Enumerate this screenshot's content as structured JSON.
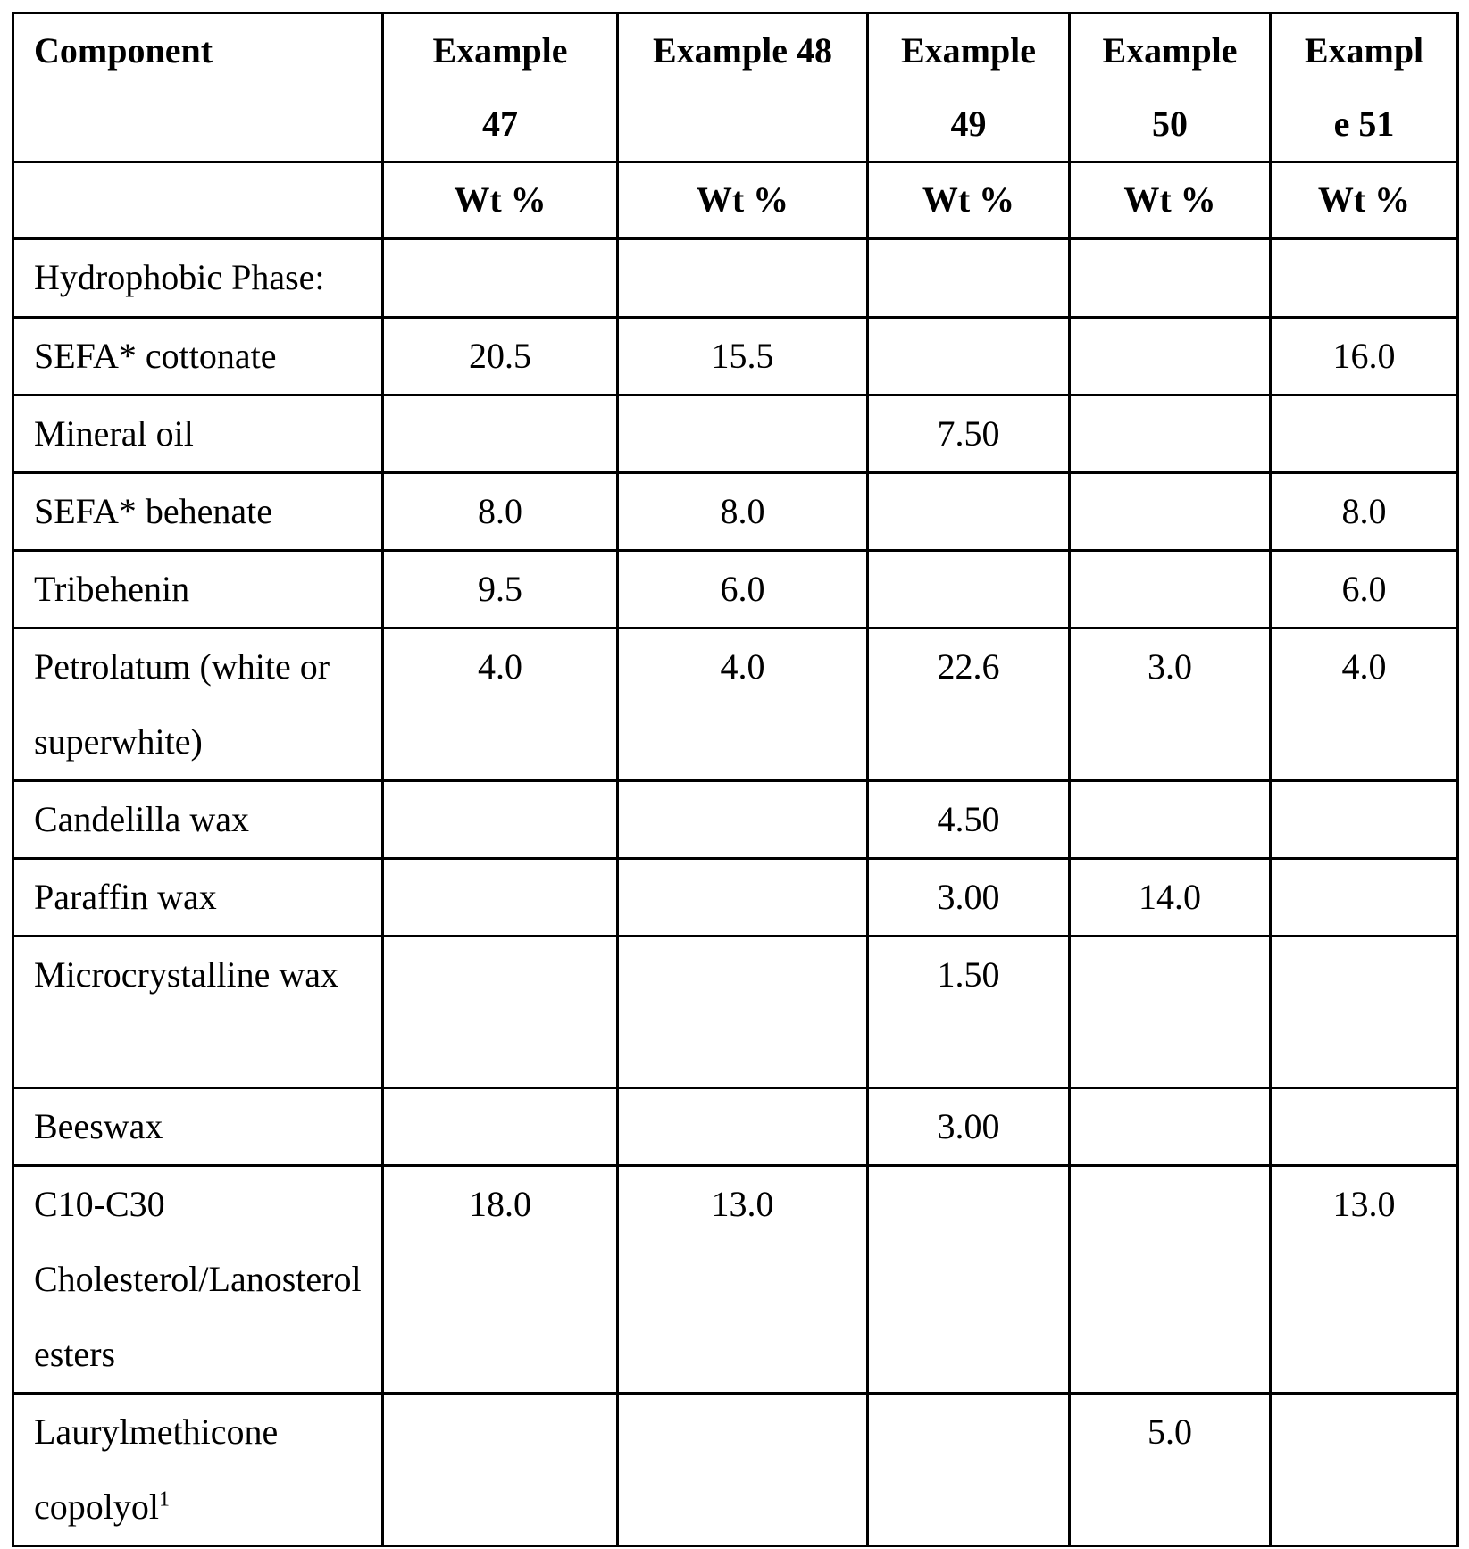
{
  "table": {
    "header": [
      "Component",
      "Example 47",
      "Example 48",
      "Example 49",
      "Example 50",
      "Exampl e 51"
    ],
    "units": [
      "",
      "Wt %",
      "Wt %",
      "Wt %",
      "Wt %",
      "Wt %"
    ],
    "rows": [
      {
        "component": "Hydrophobic Phase:",
        "values": [
          "",
          "",
          "",
          "",
          ""
        ]
      },
      {
        "component": "SEFA* cottonate",
        "values": [
          "20.5",
          "15.5",
          "",
          "",
          "16.0"
        ]
      },
      {
        "component": "Mineral oil",
        "values": [
          "",
          "",
          "7.50",
          "",
          ""
        ]
      },
      {
        "component": "SEFA* behenate",
        "values": [
          "8.0",
          "8.0",
          "",
          "",
          "8.0"
        ]
      },
      {
        "component": "Tribehenin",
        "values": [
          "9.5",
          "6.0",
          "",
          "",
          "6.0"
        ]
      },
      {
        "component": "Petrolatum (white or superwhite)",
        "values": [
          "4.0",
          "4.0",
          "22.6",
          "3.0",
          "4.0"
        ]
      },
      {
        "component": "Candelilla wax",
        "values": [
          "",
          "",
          "4.50",
          "",
          ""
        ]
      },
      {
        "component": "Paraffin wax",
        "values": [
          "",
          "",
          "3.00",
          "14.0",
          ""
        ]
      },
      {
        "component": "Microcrystalline wax",
        "values": [
          "",
          "",
          "1.50",
          "",
          ""
        ]
      },
      {
        "component": "Beeswax",
        "values": [
          "",
          "",
          "3.00",
          "",
          ""
        ]
      },
      {
        "component": "C10-C30 Cholesterol/Lanosterol esters",
        "values": [
          "18.0",
          "13.0",
          "",
          "",
          "13.0"
        ]
      },
      {
        "component": "Laurylmethicone copolyol",
        "superscript": "1",
        "values": [
          "",
          "",
          "",
          "5.0",
          ""
        ]
      }
    ]
  }
}
